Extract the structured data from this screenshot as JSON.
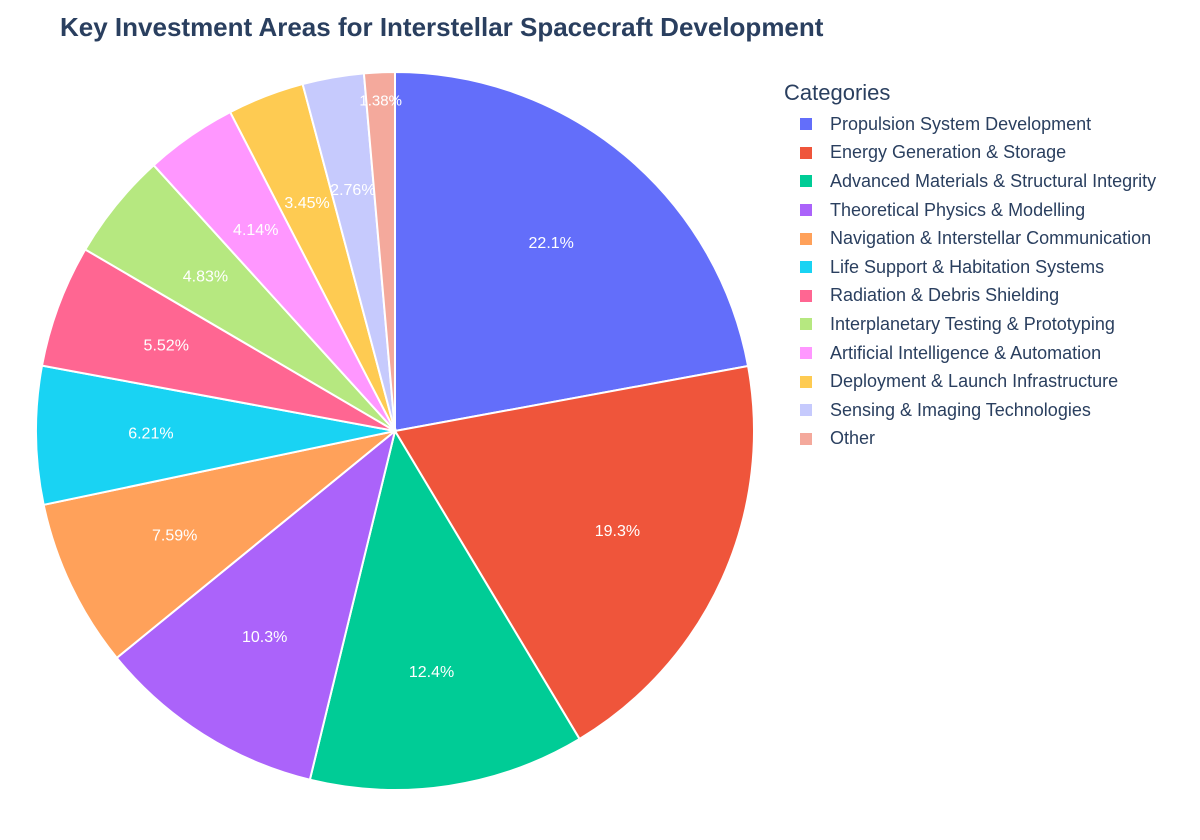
{
  "chart_data": {
    "type": "pie",
    "title": "Key Investment Areas for Interstellar Spacecraft Development",
    "legend_title": "Categories",
    "legend_position": "right",
    "direction": "clockwise",
    "slices": [
      {
        "label": "Propulsion System Development",
        "value": 22.1,
        "text": "22.1%",
        "color": "#636efa"
      },
      {
        "label": "Energy Generation & Storage",
        "value": 19.3,
        "text": "19.3%",
        "color": "#ef553b"
      },
      {
        "label": "Advanced Materials & Structural Integrity",
        "value": 12.4,
        "text": "12.4%",
        "color": "#00cc96"
      },
      {
        "label": "Theoretical Physics & Modelling",
        "value": 10.3,
        "text": "10.3%",
        "color": "#ab63fa"
      },
      {
        "label": "Navigation & Interstellar Communication",
        "value": 7.59,
        "text": "7.59%",
        "color": "#ffa15a"
      },
      {
        "label": "Life Support & Habitation Systems",
        "value": 6.21,
        "text": "6.21%",
        "color": "#19d3f3"
      },
      {
        "label": "Radiation & Debris Shielding",
        "value": 5.52,
        "text": "5.52%",
        "color": "#ff6692"
      },
      {
        "label": "Interplanetary Testing & Prototyping",
        "value": 4.83,
        "text": "4.83%",
        "color": "#b6e880"
      },
      {
        "label": "Artificial Intelligence & Automation",
        "value": 4.14,
        "text": "4.14%",
        "color": "#ff97ff"
      },
      {
        "label": "Deployment & Launch Infrastructure",
        "value": 3.45,
        "text": "3.45%",
        "color": "#fecb52"
      },
      {
        "label": "Sensing & Imaging Technologies",
        "value": 2.76,
        "text": "2.76%",
        "color": "#c6cafd"
      },
      {
        "label": "Other",
        "value": 1.38,
        "text": "1.38%",
        "color": "#f4a99c"
      }
    ]
  }
}
